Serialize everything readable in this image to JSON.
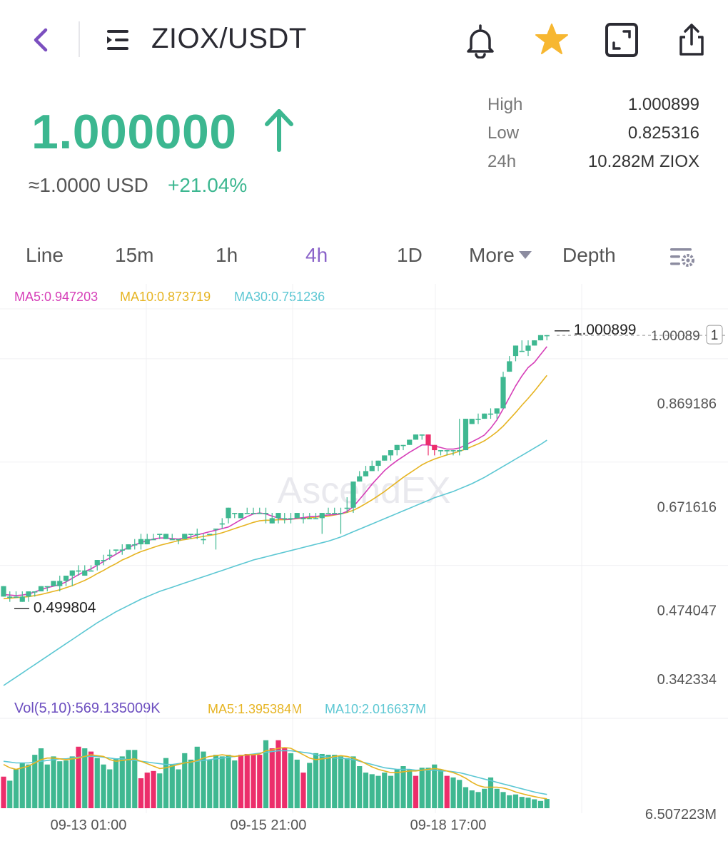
{
  "header": {
    "pair": "ZIOX/USDT",
    "icons": [
      "back-chevron-icon",
      "menu-list-icon",
      "bell-icon",
      "star-icon",
      "fullscreen-icon",
      "share-icon"
    ],
    "favorite_color": "#f7b731"
  },
  "ticker": {
    "price": "1.000000",
    "usd_equiv": "≈1.0000 USD",
    "change": "+21.04%",
    "up_color": "#3cb790",
    "stats": [
      {
        "label": "High",
        "value": "1.000899"
      },
      {
        "label": "Low",
        "value": "0.825316"
      },
      {
        "label": "24h",
        "value": "10.282M ZIOX"
      }
    ]
  },
  "tabs": [
    {
      "label": "Line",
      "active": false
    },
    {
      "label": "15m",
      "active": false
    },
    {
      "label": "1h",
      "active": false
    },
    {
      "label": "4h",
      "active": true
    },
    {
      "label": "1D",
      "active": false
    },
    {
      "label": "More",
      "active": false
    },
    {
      "label": "Depth",
      "active": false
    }
  ],
  "ma_legend": {
    "ma5": "MA5:0.947203",
    "ma10": "MA10:0.873719",
    "ma30": "MA30:0.751236"
  },
  "vol_legend": {
    "vol": "Vol(5,10):569.135009K",
    "ma5": "MA5:1.395384M",
    "ma10": "MA10:2.016637M"
  },
  "chart_data": {
    "type": "candlestick",
    "watermark": "AscendEX",
    "max_marker": "1.000899",
    "min_marker": "0.499804",
    "last_price_label": "1.00089",
    "y_ticks": [
      "1.000899",
      "0.869186",
      "0.671616",
      "0.474047",
      "0.342334"
    ],
    "ylim": [
      0.2768,
      1.0338
    ],
    "vol_tick": "6.507223M",
    "x_ticks": [
      "09-13 01:00",
      "09-15 21:00",
      "09-18 17:00"
    ],
    "colors": {
      "up": "#3fb891",
      "down": "#ec2e6b",
      "ma5": "#d63fb8",
      "ma10": "#e6b422",
      "ma30": "#5cc7d3"
    },
    "candles": [
      [
        0.5,
        0.5,
        0.52,
        0.5,
        0.52
      ],
      [
        0.5,
        0.5,
        0.5,
        0.49,
        0.51
      ],
      [
        0.5,
        0.5,
        0.5,
        0.5,
        0.51
      ],
      [
        0.5,
        0.49,
        0.5,
        0.49,
        0.51
      ],
      [
        0.5,
        0.5,
        0.51,
        0.49,
        0.51
      ],
      [
        0.5,
        0.51,
        0.51,
        0.5,
        0.51
      ],
      [
        0.51,
        0.51,
        0.52,
        0.51,
        0.52
      ],
      [
        0.52,
        0.52,
        0.52,
        0.51,
        0.52
      ],
      [
        0.52,
        0.52,
        0.53,
        0.52,
        0.53
      ],
      [
        0.53,
        0.52,
        0.53,
        0.51,
        0.54
      ],
      [
        0.52,
        0.53,
        0.54,
        0.52,
        0.54
      ],
      [
        0.54,
        0.54,
        0.55,
        0.52,
        0.55
      ],
      [
        0.54,
        0.55,
        0.55,
        0.54,
        0.56
      ],
      [
        0.54,
        0.54,
        0.55,
        0.54,
        0.56
      ],
      [
        0.54,
        0.55,
        0.55,
        0.55,
        0.56
      ],
      [
        0.56,
        0.56,
        0.57,
        0.55,
        0.57
      ],
      [
        0.56,
        0.57,
        0.57,
        0.56,
        0.58
      ],
      [
        0.58,
        0.58,
        0.58,
        0.57,
        0.59
      ],
      [
        0.58,
        0.59,
        0.59,
        0.58,
        0.59
      ],
      [
        0.58,
        0.59,
        0.59,
        0.58,
        0.6
      ],
      [
        0.6,
        0.59,
        0.6,
        0.59,
        0.6
      ],
      [
        0.6,
        0.6,
        0.6,
        0.59,
        0.61
      ],
      [
        0.6,
        0.6,
        0.61,
        0.59,
        0.62
      ],
      [
        0.61,
        0.6,
        0.61,
        0.6,
        0.62
      ],
      [
        0.61,
        0.61,
        0.61,
        0.61,
        0.62
      ],
      [
        0.61,
        0.62,
        0.62,
        0.61,
        0.62
      ],
      [
        0.62,
        0.61,
        0.62,
        0.61,
        0.62
      ],
      [
        0.61,
        0.61,
        0.61,
        0.61,
        0.62
      ],
      [
        0.61,
        0.61,
        0.61,
        0.6,
        0.61
      ],
      [
        0.61,
        0.61,
        0.62,
        0.61,
        0.62
      ],
      [
        0.62,
        0.62,
        0.62,
        0.61,
        0.62
      ],
      [
        0.62,
        0.62,
        0.62,
        0.61,
        0.63
      ],
      [
        0.61,
        0.61,
        0.61,
        0.6,
        0.62
      ],
      [
        0.62,
        0.62,
        0.62,
        0.62,
        0.62
      ],
      [
        0.61,
        0.63,
        0.63,
        0.59,
        0.63
      ],
      [
        0.64,
        0.64,
        0.64,
        0.63,
        0.65
      ],
      [
        0.65,
        0.65,
        0.67,
        0.64,
        0.67
      ],
      [
        0.66,
        0.66,
        0.66,
        0.65,
        0.66
      ],
      [
        0.65,
        0.65,
        0.66,
        0.65,
        0.66
      ],
      [
        0.66,
        0.66,
        0.66,
        0.66,
        0.67
      ],
      [
        0.66,
        0.66,
        0.66,
        0.66,
        0.67
      ],
      [
        0.66,
        0.66,
        0.66,
        0.66,
        0.67
      ],
      [
        0.65,
        0.66,
        0.66,
        0.64,
        0.67
      ],
      [
        0.64,
        0.64,
        0.65,
        0.64,
        0.66
      ],
      [
        0.65,
        0.65,
        0.66,
        0.64,
        0.66
      ],
      [
        0.65,
        0.65,
        0.65,
        0.64,
        0.66
      ],
      [
        0.65,
        0.65,
        0.65,
        0.64,
        0.66
      ],
      [
        0.65,
        0.65,
        0.66,
        0.65,
        0.66
      ],
      [
        0.65,
        0.65,
        0.65,
        0.64,
        0.66
      ],
      [
        0.65,
        0.65,
        0.65,
        0.65,
        0.66
      ],
      [
        0.65,
        0.65,
        0.65,
        0.65,
        0.66
      ],
      [
        0.65,
        0.65,
        0.66,
        0.62,
        0.66
      ],
      [
        0.66,
        0.66,
        0.66,
        0.66,
        0.67
      ],
      [
        0.65,
        0.66,
        0.66,
        0.66,
        0.67
      ],
      [
        0.66,
        0.66,
        0.66,
        0.62,
        0.67
      ],
      [
        0.67,
        0.67,
        0.67,
        0.66,
        0.69
      ],
      [
        0.67,
        0.67,
        0.72,
        0.66,
        0.72
      ],
      [
        0.72,
        0.72,
        0.73,
        0.72,
        0.74
      ],
      [
        0.73,
        0.73,
        0.74,
        0.73,
        0.75
      ],
      [
        0.74,
        0.74,
        0.75,
        0.74,
        0.76
      ],
      [
        0.75,
        0.75,
        0.76,
        0.74,
        0.76
      ],
      [
        0.76,
        0.76,
        0.77,
        0.76,
        0.77
      ],
      [
        0.77,
        0.77,
        0.78,
        0.76,
        0.78
      ],
      [
        0.77,
        0.78,
        0.79,
        0.77,
        0.79
      ],
      [
        0.78,
        0.79,
        0.79,
        0.78,
        0.79
      ],
      [
        0.79,
        0.79,
        0.8,
        0.79,
        0.8
      ],
      [
        0.8,
        0.8,
        0.81,
        0.8,
        0.81
      ],
      [
        0.81,
        0.81,
        0.81,
        0.8,
        0.81
      ],
      [
        0.8,
        0.81,
        0.79,
        0.77,
        0.81
      ],
      [
        0.78,
        0.79,
        0.78,
        0.77,
        0.79
      ],
      [
        0.78,
        0.78,
        0.78,
        0.77,
        0.78
      ],
      [
        0.77,
        0.78,
        0.78,
        0.77,
        0.78
      ],
      [
        0.78,
        0.78,
        0.78,
        0.77,
        0.78
      ],
      [
        0.77,
        0.78,
        0.78,
        0.77,
        0.84
      ],
      [
        0.78,
        0.78,
        0.84,
        0.78,
        0.84
      ],
      [
        0.83,
        0.83,
        0.84,
        0.83,
        0.84
      ],
      [
        0.84,
        0.84,
        0.84,
        0.83,
        0.85
      ],
      [
        0.84,
        0.84,
        0.85,
        0.84,
        0.85
      ],
      [
        0.85,
        0.85,
        0.85,
        0.84,
        0.86
      ],
      [
        0.85,
        0.85,
        0.86,
        0.84,
        0.86
      ],
      [
        0.86,
        0.86,
        0.92,
        0.86,
        0.93
      ],
      [
        0.93,
        0.93,
        0.95,
        0.93,
        0.96
      ],
      [
        0.96,
        0.96,
        0.98,
        0.95,
        0.98
      ],
      [
        0.97,
        0.97,
        0.97,
        0.97,
        0.99
      ],
      [
        0.97,
        0.97,
        0.98,
        0.96,
        0.99
      ],
      [
        0.98,
        0.98,
        0.99,
        0.98,
        0.99
      ],
      [
        0.99,
        0.99,
        1.0,
        0.99,
        1.0
      ],
      [
        0.99,
        1.0,
        1.0,
        0.99,
        1.0
      ]
    ],
    "ma5": [
      0.504,
      0.503,
      0.502,
      0.503,
      0.505,
      0.509,
      0.513,
      0.517,
      0.52,
      0.523,
      0.528,
      0.535,
      0.542,
      0.548,
      0.553,
      0.56,
      0.567,
      0.574,
      0.581,
      0.588,
      0.594,
      0.599,
      0.603,
      0.607,
      0.61,
      0.612,
      0.612,
      0.611,
      0.61,
      0.612,
      0.614,
      0.618,
      0.621,
      0.624,
      0.627,
      0.63,
      0.633,
      0.64,
      0.647,
      0.653,
      0.658,
      0.66,
      0.658,
      0.654,
      0.65,
      0.648,
      0.648,
      0.65,
      0.651,
      0.653,
      0.653,
      0.655,
      0.656,
      0.657,
      0.658,
      0.663,
      0.672,
      0.686,
      0.7,
      0.715,
      0.728,
      0.741,
      0.751,
      0.76,
      0.768,
      0.776,
      0.783,
      0.79,
      0.79,
      0.788,
      0.785,
      0.782,
      0.782,
      0.784,
      0.79,
      0.796,
      0.802,
      0.809,
      0.822,
      0.838,
      0.859,
      0.881,
      0.903,
      0.922,
      0.938,
      0.948,
      0.963,
      0.978
    ],
    "ma10": [
      0.496,
      0.497,
      0.498,
      0.499,
      0.5,
      0.502,
      0.504,
      0.507,
      0.51,
      0.513,
      0.517,
      0.521,
      0.526,
      0.531,
      0.537,
      0.544,
      0.55,
      0.557,
      0.563,
      0.57,
      0.575,
      0.581,
      0.586,
      0.59,
      0.594,
      0.598,
      0.601,
      0.604,
      0.607,
      0.609,
      0.611,
      0.613,
      0.615,
      0.617,
      0.619,
      0.622,
      0.626,
      0.63,
      0.634,
      0.638,
      0.642,
      0.645,
      0.646,
      0.646,
      0.647,
      0.647,
      0.648,
      0.649,
      0.65,
      0.651,
      0.652,
      0.653,
      0.654,
      0.656,
      0.658,
      0.661,
      0.665,
      0.671,
      0.678,
      0.685,
      0.693,
      0.701,
      0.71,
      0.719,
      0.728,
      0.736,
      0.744,
      0.752,
      0.758,
      0.763,
      0.767,
      0.771,
      0.774,
      0.778,
      0.782,
      0.787,
      0.792,
      0.798,
      0.806,
      0.815,
      0.826,
      0.839,
      0.852,
      0.866,
      0.879,
      0.893,
      0.908,
      0.923
    ],
    "ma30": [
      0.33,
      0.338,
      0.346,
      0.354,
      0.362,
      0.37,
      0.378,
      0.386,
      0.394,
      0.402,
      0.41,
      0.418,
      0.426,
      0.434,
      0.442,
      0.45,
      0.457,
      0.464,
      0.471,
      0.477,
      0.483,
      0.489,
      0.495,
      0.5,
      0.505,
      0.51,
      0.514,
      0.518,
      0.522,
      0.526,
      0.53,
      0.534,
      0.538,
      0.542,
      0.546,
      0.55,
      0.554,
      0.558,
      0.562,
      0.566,
      0.57,
      0.573,
      0.576,
      0.579,
      0.582,
      0.585,
      0.588,
      0.591,
      0.594,
      0.597,
      0.6,
      0.603,
      0.606,
      0.61,
      0.614,
      0.619,
      0.624,
      0.629,
      0.634,
      0.639,
      0.644,
      0.649,
      0.654,
      0.659,
      0.664,
      0.669,
      0.674,
      0.679,
      0.684,
      0.689,
      0.693,
      0.697,
      0.701,
      0.706,
      0.711,
      0.716,
      0.722,
      0.728,
      0.735,
      0.742,
      0.749,
      0.756,
      0.763,
      0.77,
      0.777,
      0.784,
      0.791,
      0.799
    ],
    "volume": {
      "ylim": [
        0,
        5.2
      ],
      "bars": [
        [
          1.95,
          "down"
        ],
        [
          1.7,
          "up"
        ],
        [
          2.4,
          "up"
        ],
        [
          2.8,
          "up"
        ],
        [
          2.7,
          "up"
        ],
        [
          3.3,
          "up"
        ],
        [
          3.7,
          "up"
        ],
        [
          2.7,
          "up"
        ],
        [
          3.2,
          "up"
        ],
        [
          2.9,
          "up"
        ],
        [
          2.95,
          "up"
        ],
        [
          3.2,
          "up"
        ],
        [
          3.8,
          "down"
        ],
        [
          3.7,
          "up"
        ],
        [
          3.5,
          "down"
        ],
        [
          3.1,
          "up"
        ],
        [
          2.7,
          "up"
        ],
        [
          2.4,
          "up"
        ],
        [
          3.05,
          "up"
        ],
        [
          3.2,
          "up"
        ],
        [
          3.6,
          "up"
        ],
        [
          3.6,
          "up"
        ],
        [
          1.85,
          "down"
        ],
        [
          2.2,
          "down"
        ],
        [
          2.3,
          "down"
        ],
        [
          2.15,
          "up"
        ],
        [
          3.1,
          "up"
        ],
        [
          2.7,
          "up"
        ],
        [
          2.4,
          "up"
        ],
        [
          3.4,
          "up"
        ],
        [
          3.0,
          "up"
        ],
        [
          3.8,
          "up"
        ],
        [
          3.5,
          "up"
        ],
        [
          3.0,
          "up"
        ],
        [
          3.3,
          "up"
        ],
        [
          3.2,
          "up"
        ],
        [
          3.3,
          "up"
        ],
        [
          2.95,
          "up"
        ],
        [
          3.3,
          "down"
        ],
        [
          3.35,
          "down"
        ],
        [
          3.35,
          "down"
        ],
        [
          3.3,
          "down"
        ],
        [
          4.2,
          "up"
        ],
        [
          3.7,
          "down"
        ],
        [
          4.2,
          "down"
        ],
        [
          3.7,
          "down"
        ],
        [
          3.4,
          "up"
        ],
        [
          3.0,
          "up"
        ],
        [
          2.2,
          "down"
        ],
        [
          2.8,
          "up"
        ],
        [
          3.4,
          "up"
        ],
        [
          3.35,
          "up"
        ],
        [
          3.3,
          "up"
        ],
        [
          3.3,
          "up"
        ],
        [
          3.2,
          "up"
        ],
        [
          3.1,
          "up"
        ],
        [
          3.2,
          "up"
        ],
        [
          2.6,
          "up"
        ],
        [
          2.2,
          "up"
        ],
        [
          2.1,
          "up"
        ],
        [
          2.0,
          "up"
        ],
        [
          2.2,
          "up"
        ],
        [
          2.0,
          "up"
        ],
        [
          2.4,
          "up"
        ],
        [
          2.6,
          "up"
        ],
        [
          2.4,
          "up"
        ],
        [
          2.0,
          "down"
        ],
        [
          2.5,
          "up"
        ],
        [
          2.5,
          "up"
        ],
        [
          2.7,
          "up"
        ],
        [
          2.4,
          "up"
        ],
        [
          2.0,
          "down"
        ],
        [
          1.9,
          "up"
        ],
        [
          1.75,
          "up"
        ],
        [
          1.3,
          "up"
        ],
        [
          1.1,
          "up"
        ],
        [
          1.0,
          "up"
        ],
        [
          1.2,
          "up"
        ],
        [
          1.9,
          "up"
        ],
        [
          1.2,
          "up"
        ],
        [
          1.0,
          "up"
        ],
        [
          0.8,
          "up"
        ],
        [
          0.85,
          "up"
        ],
        [
          0.7,
          "up"
        ],
        [
          0.65,
          "up"
        ],
        [
          0.55,
          "up"
        ],
        [
          0.45,
          "up"
        ],
        [
          0.57,
          "up"
        ]
      ],
      "ma5": [
        2.7,
        2.5,
        2.4,
        2.5,
        2.6,
        2.8,
        3.0,
        3.1,
        3.1,
        3.05,
        3.0,
        3.05,
        3.1,
        3.2,
        3.3,
        3.25,
        3.2,
        3.0,
        2.9,
        2.95,
        3.0,
        3.05,
        2.9,
        2.75,
        2.6,
        2.45,
        2.5,
        2.6,
        2.7,
        2.8,
        2.85,
        2.95,
        3.1,
        3.2,
        3.25,
        3.3,
        3.25,
        3.2,
        3.25,
        3.3,
        3.3,
        3.35,
        3.55,
        3.6,
        3.7,
        3.75,
        3.7,
        3.5,
        3.3,
        3.1,
        3.0,
        3.05,
        3.1,
        3.2,
        3.25,
        3.2,
        3.1,
        2.95,
        2.75,
        2.55,
        2.4,
        2.3,
        2.2,
        2.2,
        2.25,
        2.3,
        2.3,
        2.35,
        2.4,
        2.45,
        2.4,
        2.3,
        2.2,
        2.05,
        1.85,
        1.6,
        1.4,
        1.3,
        1.3,
        1.3,
        1.25,
        1.15,
        1.0,
        0.9,
        0.8,
        0.72,
        0.64,
        0.58
      ],
      "ma10": [
        2.9,
        2.85,
        2.8,
        2.8,
        2.8,
        2.85,
        2.9,
        2.95,
        3.0,
        3.05,
        3.05,
        3.1,
        3.15,
        3.2,
        3.2,
        3.2,
        3.15,
        3.1,
        3.05,
        3.05,
        3.0,
        2.95,
        2.9,
        2.85,
        2.8,
        2.75,
        2.7,
        2.7,
        2.75,
        2.8,
        2.85,
        2.9,
        2.95,
        3.0,
        3.05,
        3.1,
        3.15,
        3.2,
        3.25,
        3.3,
        3.35,
        3.4,
        3.45,
        3.5,
        3.55,
        3.55,
        3.55,
        3.5,
        3.45,
        3.4,
        3.3,
        3.2,
        3.15,
        3.1,
        3.1,
        3.05,
        3.0,
        2.9,
        2.8,
        2.7,
        2.6,
        2.5,
        2.45,
        2.4,
        2.4,
        2.4,
        2.35,
        2.35,
        2.35,
        2.35,
        2.3,
        2.3,
        2.25,
        2.2,
        2.1,
        2.0,
        1.9,
        1.8,
        1.7,
        1.6,
        1.5,
        1.4,
        1.3,
        1.2,
        1.1,
        1.0,
        0.92,
        0.85
      ]
    }
  }
}
